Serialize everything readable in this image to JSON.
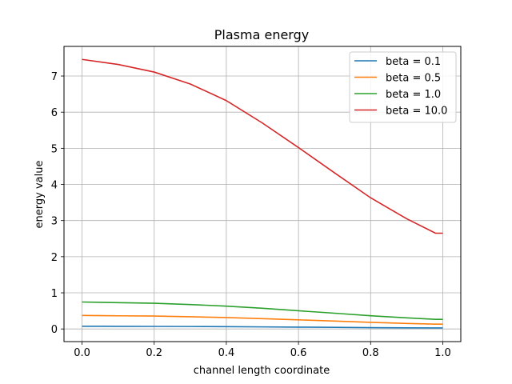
{
  "chart_data": {
    "type": "line",
    "title": "Plasma energy",
    "xlabel": "channel length coordinate",
    "ylabel": "energy value",
    "xlim": [
      -0.05,
      1.05
    ],
    "ylim": [
      -0.35,
      7.82
    ],
    "xticks": [
      0.0,
      0.2,
      0.4,
      0.6,
      0.8,
      1.0
    ],
    "xtick_labels": [
      "0.0",
      "0.2",
      "0.4",
      "0.6",
      "0.8",
      "1.0"
    ],
    "yticks": [
      0,
      1,
      2,
      3,
      4,
      5,
      6,
      7
    ],
    "ytick_labels": [
      "0",
      "1",
      "2",
      "3",
      "4",
      "5",
      "6",
      "7"
    ],
    "grid": true,
    "legend_position": "top-right",
    "x": [
      0.0,
      0.1,
      0.2,
      0.3,
      0.4,
      0.5,
      0.6,
      0.7,
      0.8,
      0.9,
      0.98,
      1.0
    ],
    "series": [
      {
        "name": "beta = 0.1",
        "color": "#1f77b4",
        "values": [
          0.075,
          0.073,
          0.071,
          0.068,
          0.063,
          0.057,
          0.05,
          0.044,
          0.037,
          0.031,
          0.027,
          0.027
        ]
      },
      {
        "name": "beta = 0.5",
        "color": "#ff7f0e",
        "values": [
          0.373,
          0.364,
          0.356,
          0.338,
          0.316,
          0.286,
          0.252,
          0.218,
          0.183,
          0.153,
          0.133,
          0.133
        ]
      },
      {
        "name": "beta = 1.0",
        "color": "#2ca02c",
        "values": [
          0.746,
          0.729,
          0.711,
          0.676,
          0.632,
          0.572,
          0.503,
          0.436,
          0.366,
          0.307,
          0.266,
          0.266
        ]
      },
      {
        "name": "beta = 10.0",
        "color": "#d62728",
        "values": [
          7.46,
          7.32,
          7.11,
          6.78,
          6.32,
          5.7,
          5.02,
          4.32,
          3.63,
          3.05,
          2.65,
          2.65
        ]
      }
    ]
  }
}
